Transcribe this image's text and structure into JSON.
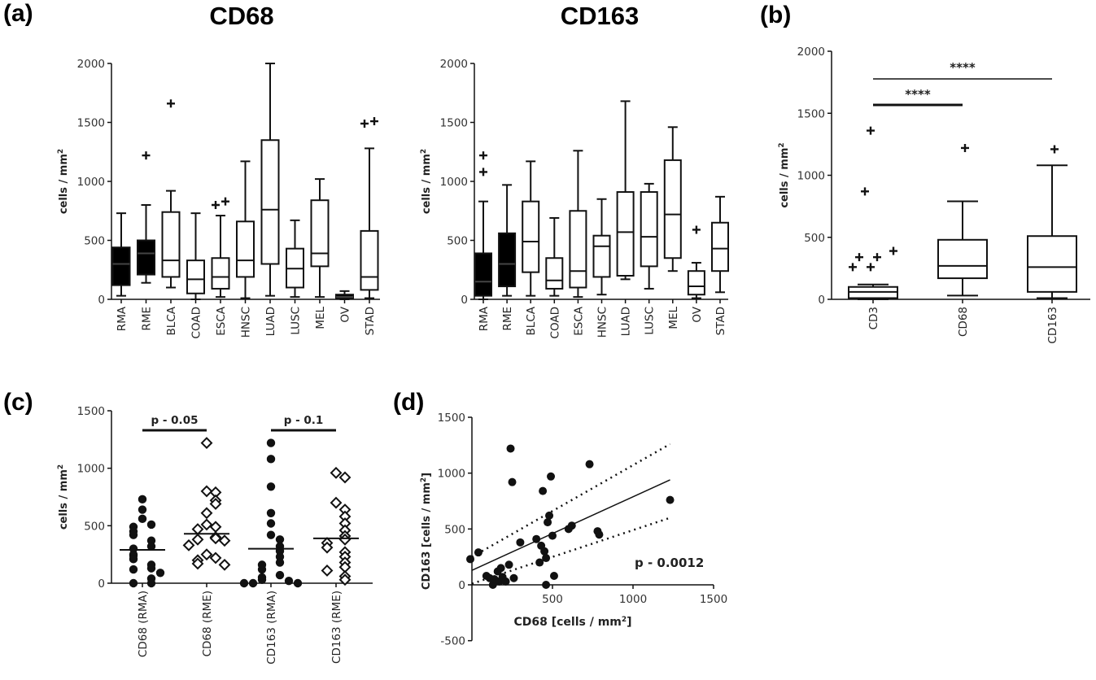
{
  "figure": {
    "panel_labels": [
      "(a)",
      "(b)",
      "(c)",
      "(d)"
    ]
  },
  "chart_data": [
    {
      "id": "a1",
      "type": "box",
      "title": "CD68",
      "ylabel": "cells / mm",
      "ylabel_superscript": "2",
      "ylim": [
        0,
        2000
      ],
      "yticks": [
        0,
        500,
        1000,
        1500,
        2000
      ],
      "categories": [
        "RMA",
        "RME",
        "BLCA",
        "COAD",
        "ESCA",
        "HNSC",
        "LUAD",
        "LUSC",
        "MEL",
        "OV",
        "STAD"
      ],
      "filled": [
        true,
        true,
        false,
        false,
        false,
        false,
        false,
        false,
        false,
        true,
        false
      ],
      "boxes": [
        {
          "min": 30,
          "q1": 120,
          "median": 300,
          "q3": 440,
          "max": 730,
          "outliers": []
        },
        {
          "min": 140,
          "q1": 210,
          "median": 390,
          "q3": 500,
          "max": 800,
          "outliers": [
            1220
          ]
        },
        {
          "min": 100,
          "q1": 190,
          "median": 330,
          "q3": 740,
          "max": 920,
          "outliers": [
            1660
          ]
        },
        {
          "min": 0,
          "q1": 50,
          "median": 170,
          "q3": 330,
          "max": 730,
          "outliers": []
        },
        {
          "min": 20,
          "q1": 90,
          "median": 190,
          "q3": 350,
          "max": 710,
          "outliers": [
            800,
            830
          ]
        },
        {
          "min": 10,
          "q1": 190,
          "median": 330,
          "q3": 660,
          "max": 1170,
          "outliers": []
        },
        {
          "min": 30,
          "q1": 300,
          "median": 760,
          "q3": 1350,
          "max": 2000,
          "outliers": []
        },
        {
          "min": 20,
          "q1": 100,
          "median": 260,
          "q3": 430,
          "max": 670,
          "outliers": []
        },
        {
          "min": 20,
          "q1": 280,
          "median": 390,
          "q3": 840,
          "max": 1020,
          "outliers": []
        },
        {
          "min": 0,
          "q1": 10,
          "median": 20,
          "q3": 40,
          "max": 70,
          "outliers": []
        },
        {
          "min": 10,
          "q1": 80,
          "median": 190,
          "q3": 580,
          "max": 1280,
          "outliers": [
            1490,
            1510
          ]
        }
      ]
    },
    {
      "id": "a2",
      "type": "box",
      "title": "CD163",
      "ylabel": "cells / mm",
      "ylabel_superscript": "2",
      "ylim": [
        0,
        2000
      ],
      "yticks": [
        0,
        500,
        1000,
        1500,
        2000
      ],
      "categories": [
        "RMA",
        "RME",
        "BLCA",
        "COAD",
        "ESCA",
        "HNSC",
        "LUAD",
        "LUSC",
        "MEL",
        "OV",
        "STAD"
      ],
      "filled": [
        true,
        true,
        false,
        false,
        false,
        false,
        false,
        false,
        false,
        false,
        false
      ],
      "boxes": [
        {
          "min": 0,
          "q1": 30,
          "median": 150,
          "q3": 390,
          "max": 830,
          "outliers": [
            1080,
            1220
          ]
        },
        {
          "min": 30,
          "q1": 110,
          "median": 300,
          "q3": 560,
          "max": 970,
          "outliers": []
        },
        {
          "min": 30,
          "q1": 230,
          "median": 490,
          "q3": 830,
          "max": 1170,
          "outliers": []
        },
        {
          "min": 30,
          "q1": 90,
          "median": 160,
          "q3": 350,
          "max": 690,
          "outliers": []
        },
        {
          "min": 20,
          "q1": 100,
          "median": 240,
          "q3": 750,
          "max": 1260,
          "outliers": []
        },
        {
          "min": 40,
          "q1": 190,
          "median": 450,
          "q3": 540,
          "max": 850,
          "outliers": []
        },
        {
          "min": 170,
          "q1": 200,
          "median": 570,
          "q3": 910,
          "max": 1680,
          "outliers": []
        },
        {
          "min": 90,
          "q1": 280,
          "median": 530,
          "q3": 910,
          "max": 980,
          "outliers": []
        },
        {
          "min": 240,
          "q1": 350,
          "median": 720,
          "q3": 1180,
          "max": 1460,
          "outliers": []
        },
        {
          "min": 10,
          "q1": 40,
          "median": 110,
          "q3": 240,
          "max": 310,
          "outliers": [
            590
          ]
        },
        {
          "min": 60,
          "q1": 240,
          "median": 430,
          "q3": 650,
          "max": 870,
          "outliers": []
        }
      ]
    },
    {
      "id": "b",
      "type": "box",
      "ylabel": "cells / mm",
      "ylabel_superscript": "2",
      "ylim": [
        0,
        2000
      ],
      "yticks": [
        0,
        500,
        1000,
        1500,
        2000
      ],
      "categories": [
        "CD3",
        "CD68",
        "CD163"
      ],
      "filled": [
        false,
        false,
        false
      ],
      "boxes": [
        {
          "min": 0,
          "q1": 10,
          "median": 60,
          "q3": 100,
          "max": 120,
          "outliers": [
            260,
            260,
            340,
            340,
            390,
            870,
            1360
          ]
        },
        {
          "min": 30,
          "q1": 170,
          "median": 270,
          "q3": 480,
          "max": 790,
          "outliers": [
            1220
          ]
        },
        {
          "min": 10,
          "q1": 60,
          "median": 260,
          "q3": 510,
          "max": 1080,
          "outliers": [
            1210
          ]
        }
      ],
      "significance": [
        {
          "from": "CD3",
          "to": "CD68",
          "label": "****"
        },
        {
          "from": "CD3",
          "to": "CD163",
          "label": "****"
        }
      ]
    },
    {
      "id": "c",
      "type": "scatter",
      "subtype": "dot-plot",
      "ylabel": "cells / mm",
      "ylabel_superscript": "2",
      "ylim": [
        0,
        1500
      ],
      "yticks": [
        0,
        500,
        1000,
        1500
      ],
      "categories": [
        "CD68 (RMA)",
        "CD68 (RME)",
        "CD163 (RMA)",
        "CD163 (RME)"
      ],
      "markers": [
        "filled-circle",
        "open-diamond",
        "filled-circle",
        "open-diamond"
      ],
      "groups": [
        [
          730,
          640,
          560,
          510,
          490,
          450,
          420,
          370,
          320,
          300,
          250,
          240,
          210,
          160,
          130,
          120,
          90,
          40,
          0,
          0
        ],
        [
          1220,
          800,
          790,
          720,
          690,
          610,
          510,
          490,
          470,
          400,
          390,
          380,
          370,
          330,
          250,
          220,
          200,
          170,
          160
        ],
        [
          1220,
          1080,
          840,
          610,
          520,
          420,
          380,
          320,
          280,
          230,
          180,
          160,
          120,
          70,
          50,
          30,
          20,
          0,
          0,
          0
        ],
        [
          960,
          920,
          700,
          640,
          580,
          520,
          460,
          410,
          380,
          350,
          310,
          270,
          230,
          180,
          140,
          110,
          60,
          30
        ]
      ],
      "means": [
        290,
        430,
        300,
        390
      ],
      "significance": [
        {
          "from": "CD68 (RMA)",
          "to": "CD68 (RME)",
          "label": "p - 0.05"
        },
        {
          "from": "CD163 (RMA)",
          "to": "CD163 (RME)",
          "label": "p - 0.1"
        }
      ]
    },
    {
      "id": "d",
      "type": "scatter",
      "xlabel": "CD68 [cells / mm",
      "xlabel_superscript": "2",
      "xlabel_suffix": "]",
      "ylabel": "CD163 [cells / mm",
      "ylabel_superscript": "2",
      "ylabel_suffix": "]",
      "xlim": [
        0,
        1500
      ],
      "ylim": [
        -500,
        1500
      ],
      "xticks": [
        500,
        1000,
        1500
      ],
      "yticks": [
        -500,
        0,
        500,
        1000,
        1500
      ],
      "points": [
        [
          -10,
          230
        ],
        [
          40,
          290
        ],
        [
          90,
          80
        ],
        [
          110,
          60
        ],
        [
          130,
          0
        ],
        [
          140,
          50
        ],
        [
          160,
          120
        ],
        [
          170,
          30
        ],
        [
          180,
          150
        ],
        [
          190,
          70
        ],
        [
          210,
          30
        ],
        [
          230,
          180
        ],
        [
          240,
          1220
        ],
        [
          250,
          920
        ],
        [
          260,
          60
        ],
        [
          300,
          380
        ],
        [
          400,
          410
        ],
        [
          420,
          200
        ],
        [
          430,
          350
        ],
        [
          440,
          840
        ],
        [
          450,
          300
        ],
        [
          460,
          0
        ],
        [
          460,
          240
        ],
        [
          470,
          560
        ],
        [
          480,
          620
        ],
        [
          490,
          970
        ],
        [
          500,
          440
        ],
        [
          510,
          80
        ],
        [
          600,
          500
        ],
        [
          620,
          530
        ],
        [
          730,
          1080
        ],
        [
          780,
          480
        ],
        [
          790,
          450
        ],
        [
          1230,
          760
        ]
      ],
      "regression": {
        "x": [
          0,
          1230
        ],
        "y": [
          130,
          940
        ]
      },
      "ci_upper": {
        "x": [
          0,
          1230
        ],
        "y": [
          250,
          1260
        ]
      },
      "ci_lower": {
        "x": [
          0,
          1230
        ],
        "y": [
          10,
          600
        ]
      },
      "annotation": "p - 0.0012"
    }
  ]
}
